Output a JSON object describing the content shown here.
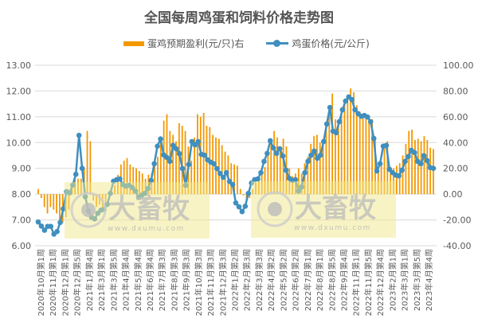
{
  "chart_data": {
    "type": "bar+line",
    "title": "全国每周鸡蛋和饲料价格走势图",
    "legend_placement": "top",
    "grid": true,
    "colors": {
      "bar": "#F39800",
      "line": "#3F8FBF",
      "grid": "#D9D9D9",
      "text": "#595959"
    },
    "y_left": {
      "range": [
        6,
        13
      ],
      "ticks": [
        "13.00",
        "12.00",
        "11.00",
        "10.00",
        "9.00",
        "8.00",
        "7.00",
        "6.00"
      ]
    },
    "y_right": {
      "range": [
        -40,
        100
      ],
      "ticks": [
        "100.00",
        "80.00",
        "60.00",
        "40.00",
        "20.00",
        "0.00",
        "-20.00",
        "-40.00"
      ]
    },
    "x_tick_labels": [
      "2020年10月第1周",
      "2020年11月第1周",
      "2020年12月第1周",
      "2020年12月第5周",
      "2021年1月第4周",
      "2021年3月第1周",
      "2021年3月第5周",
      "2021年4月第4周",
      "2021年5月第4周",
      "2021年6月第4周",
      "2021年7月第3周",
      "2021年8月第3周",
      "2021年9月第3周",
      "2021年10月第3周",
      "2021年11月第3周",
      "2021年12月第3周",
      "2022年1月第2周",
      "2022年2月第3周",
      "2022年3月第3周",
      "2022年4月第2周",
      "2022年5月第2周",
      "2022年6月第2周",
      "2022年7月第1周",
      "2022年8月第1周",
      "2022年8月第5周",
      "2022年9月第4周",
      "2022年11月第1周",
      "2022年11月第5周",
      "2022年12月第4周",
      "2023年2月第1周",
      "2023年3月第1周",
      "2023年3月第5周",
      "2023年4月第4周"
    ],
    "series": [
      {
        "name": "蛋鸡预期盈利(元/只)右",
        "type": "bar",
        "axis": "right",
        "values": [
          4,
          -3,
          -10,
          -15,
          -10,
          -12,
          -15,
          -20,
          -22,
          -18,
          -12,
          5,
          12,
          12,
          12,
          20,
          49,
          41,
          -5,
          -10,
          -8,
          -12,
          -6,
          1,
          2,
          7,
          15,
          23,
          26,
          28,
          23,
          21,
          20,
          18,
          16,
          12,
          15,
          16,
          23,
          29,
          44,
          57,
          62,
          49,
          46,
          41,
          55,
          53,
          49,
          37,
          26,
          44,
          62,
          60,
          63,
          53,
          52,
          46,
          44,
          43,
          38,
          33,
          30,
          24,
          23,
          22,
          4,
          -1,
          -7,
          -3,
          4,
          9,
          11,
          15,
          21,
          31,
          39,
          49,
          44,
          37,
          43,
          37,
          20,
          14,
          16,
          20,
          16,
          24,
          29,
          39,
          45,
          46,
          40,
          41,
          53,
          66,
          78,
          58,
          55,
          62,
          70,
          76,
          82,
          79,
          69,
          64,
          62,
          61,
          60,
          58,
          44,
          19,
          22,
          39,
          41,
          21,
          20,
          22,
          24,
          30,
          39,
          49,
          50,
          42,
          43,
          41,
          45,
          42,
          36,
          35
        ]
      },
      {
        "name": "鸡蛋价格(元/公斤)",
        "type": "line",
        "axis": "left",
        "values": [
          6.92,
          6.76,
          6.6,
          6.75,
          6.75,
          6.45,
          6.55,
          6.9,
          7.43,
          8.1,
          8.05,
          8.35,
          8.77,
          10.28,
          9.0,
          7.9,
          7.35,
          7.1,
          7.04,
          7.26,
          7.38,
          7.41,
          7.6,
          8.03,
          8.5,
          8.56,
          8.59,
          8.37,
          8.31,
          8.34,
          8.25,
          8.12,
          7.87,
          7.96,
          8.03,
          8.22,
          8.53,
          9.18,
          9.86,
          10.14,
          9.52,
          9.42,
          9.27,
          9.89,
          9.76,
          9.57,
          8.99,
          8.34,
          9.15,
          10.04,
          9.91,
          10.04,
          9.54,
          9.51,
          9.33,
          9.24,
          9.18,
          8.99,
          8.8,
          8.65,
          8.83,
          8.49,
          8.37,
          7.66,
          7.51,
          7.32,
          7.53,
          8.03,
          8.43,
          8.56,
          8.59,
          8.83,
          9.27,
          9.58,
          10.07,
          9.79,
          9.58,
          9.76,
          9.48,
          8.93,
          8.62,
          8.53,
          8.56,
          8.12,
          8.28,
          8.83,
          9.27,
          9.51,
          9.67,
          9.39,
          9.51,
          10.04,
          10.72,
          11.36,
          10.44,
          10.38,
          10.81,
          11.27,
          11.61,
          11.77,
          11.67,
          11.27,
          11.12,
          11.02,
          11.05,
          10.99,
          10.81,
          10.16,
          8.9,
          9.18,
          9.86,
          9.89,
          8.96,
          8.83,
          8.74,
          8.71,
          8.93,
          9.27,
          9.46,
          9.7,
          9.61,
          9.27,
          9.18,
          9.49,
          9.3,
          9.03,
          9.0
        ]
      }
    ]
  },
  "watermark": {
    "brand": "大畜牧",
    "url": "www.dxumu.com"
  }
}
